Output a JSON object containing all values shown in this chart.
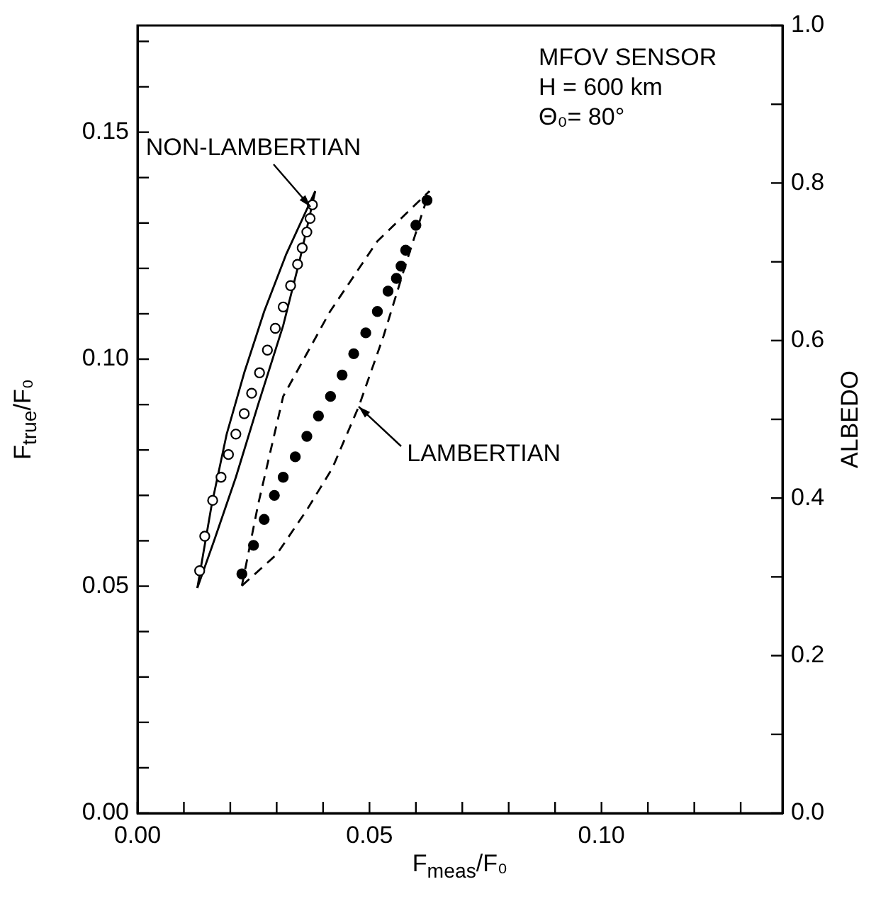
{
  "chart_data": {
    "type": "scatter",
    "xlabel": "F$_{meas}$/F₀",
    "ylabel": "F$_{true}$/F₀",
    "y2label": "ALBEDO",
    "xlim": [
      0,
      0.139
    ],
    "ylim": [
      0,
      0.1735
    ],
    "y2lim": [
      0,
      1
    ],
    "xticks": [
      {
        "value": 0,
        "label": "0.00"
      },
      {
        "value": 0.01,
        "label": null
      },
      {
        "value": 0.02,
        "label": null
      },
      {
        "value": 0.03,
        "label": null
      },
      {
        "value": 0.04,
        "label": null
      },
      {
        "value": 0.05,
        "label": "0.05"
      },
      {
        "value": 0.06,
        "label": null
      },
      {
        "value": 0.07,
        "label": null
      },
      {
        "value": 0.08,
        "label": null
      },
      {
        "value": 0.09,
        "label": null
      },
      {
        "value": 0.1,
        "label": "0.10"
      },
      {
        "value": 0.11,
        "label": null
      },
      {
        "value": 0.12,
        "label": null
      },
      {
        "value": 0.13,
        "label": null
      }
    ],
    "yticks": [
      {
        "value": 0,
        "label": "0.00"
      },
      {
        "value": 0.01,
        "label": null
      },
      {
        "value": 0.02,
        "label": null
      },
      {
        "value": 0.03,
        "label": null
      },
      {
        "value": 0.04,
        "label": null
      },
      {
        "value": 0.05,
        "label": "0.05"
      },
      {
        "value": 0.06,
        "label": null
      },
      {
        "value": 0.07,
        "label": null
      },
      {
        "value": 0.08,
        "label": null
      },
      {
        "value": 0.09,
        "label": null
      },
      {
        "value": 0.1,
        "label": "0.10"
      },
      {
        "value": 0.11,
        "label": null
      },
      {
        "value": 0.12,
        "label": null
      },
      {
        "value": 0.13,
        "label": null
      },
      {
        "value": 0.14,
        "label": null
      },
      {
        "value": 0.15,
        "label": "0.15"
      },
      {
        "value": 0.16,
        "label": null
      },
      {
        "value": 0.17,
        "label": null
      }
    ],
    "y2ticks": [
      {
        "value": 0,
        "label": "0.0"
      },
      {
        "value": 0.1,
        "label": null
      },
      {
        "value": 0.2,
        "label": "0.2"
      },
      {
        "value": 0.3,
        "label": null
      },
      {
        "value": 0.4,
        "label": "0.4"
      },
      {
        "value": 0.5,
        "label": null
      },
      {
        "value": 0.6,
        "label": "0.6"
      },
      {
        "value": 0.7,
        "label": null
      },
      {
        "value": 0.8,
        "label": "0.8"
      },
      {
        "value": 0.9,
        "label": null
      },
      {
        "value": 1,
        "label": "1.0"
      }
    ],
    "grid": false,
    "legend": false,
    "series": [
      {
        "marker": "circle-open",
        "color": "#000000",
        "x": [
          0.0134,
          0.0145,
          0.0162,
          0.018,
          0.0196,
          0.0212,
          0.023,
          0.0246,
          0.0263,
          0.028,
          0.0297,
          0.0314,
          0.033,
          0.0345,
          0.0355,
          0.0365,
          0.0372,
          0.0377
        ],
        "values": [
          0.0534,
          0.061,
          0.0689,
          0.074,
          0.079,
          0.0835,
          0.088,
          0.0925,
          0.097,
          0.102,
          0.1068,
          0.1115,
          0.1162,
          0.1209,
          0.1245,
          0.128,
          0.131,
          0.134
        ]
      },
      {
        "marker": "circle",
        "color": "#000000",
        "x": [
          0.0225,
          0.025,
          0.0273,
          0.0295,
          0.0314,
          0.034,
          0.0365,
          0.039,
          0.0416,
          0.0441,
          0.0466,
          0.0492,
          0.0517,
          0.054,
          0.0558,
          0.0568,
          0.0578,
          0.06,
          0.0624
        ],
        "values": [
          0.0527,
          0.059,
          0.0647,
          0.07,
          0.074,
          0.0785,
          0.083,
          0.0875,
          0.0918,
          0.0965,
          0.1012,
          0.1058,
          0.1105,
          0.115,
          0.1178,
          0.1205,
          0.124,
          0.1295,
          0.135
        ]
      },
      {
        "type": "line",
        "line_style": "solid",
        "marker": "none",
        "color": "#000000",
        "x": [
          0.0129,
          0.016,
          0.0192,
          0.023,
          0.0273,
          0.032,
          0.0383
        ],
        "values": [
          0.0496,
          0.068,
          0.0834,
          0.097,
          0.1105,
          0.123,
          0.137
        ]
      },
      {
        "type": "line",
        "line_style": "solid",
        "marker": "none",
        "color": "#000000",
        "x": [
          0.0129,
          0.0165,
          0.0212,
          0.026,
          0.0314,
          0.035,
          0.0383
        ],
        "values": [
          0.0496,
          0.06,
          0.074,
          0.09,
          0.1074,
          0.122,
          0.137
        ]
      },
      {
        "type": "line",
        "line_style": "dashed",
        "marker": "none",
        "color": "#000000",
        "x": [
          0.0225,
          0.026,
          0.0314,
          0.0415,
          0.0517,
          0.0629
        ],
        "values": [
          0.0501,
          0.068,
          0.0918,
          0.1105,
          0.126,
          0.137
        ]
      },
      {
        "type": "line",
        "line_style": "dashed",
        "marker": "none",
        "color": "#000000",
        "x": [
          0.0225,
          0.03,
          0.0365,
          0.042,
          0.0477,
          0.053,
          0.0578,
          0.0629
        ],
        "values": [
          0.0501,
          0.057,
          0.0668,
          0.076,
          0.0896,
          0.105,
          0.1209,
          0.137
        ]
      }
    ],
    "annotations": [
      "MFOV SENSOR",
      "H = 600 km",
      "Θ₀= 80°",
      {
        "text": "NON-LAMBERTIAN",
        "x": 0.0372,
        "y": 0.1335
      },
      {
        "text": "LAMBERTIAN",
        "x": 0.0477,
        "y": 0.0896
      }
    ]
  }
}
